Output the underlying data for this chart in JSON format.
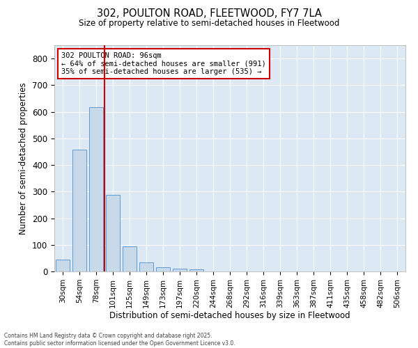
{
  "title1": "302, POULTON ROAD, FLEETWOOD, FY7 7LA",
  "title2": "Size of property relative to semi-detached houses in Fleetwood",
  "xlabel": "Distribution of semi-detached houses by size in Fleetwood",
  "ylabel": "Number of semi-detached properties",
  "bar_categories": [
    "30sqm",
    "54sqm",
    "78sqm",
    "101sqm",
    "125sqm",
    "149sqm",
    "173sqm",
    "197sqm",
    "220sqm",
    "244sqm",
    "268sqm",
    "292sqm",
    "316sqm",
    "339sqm",
    "363sqm",
    "387sqm",
    "411sqm",
    "435sqm",
    "458sqm",
    "482sqm",
    "506sqm"
  ],
  "bar_values": [
    45,
    457,
    617,
    289,
    94,
    35,
    15,
    10,
    8,
    0,
    0,
    0,
    0,
    0,
    0,
    0,
    0,
    0,
    0,
    0,
    0
  ],
  "bar_color": "#c8d9ea",
  "bar_edge_color": "#5b9bd5",
  "vline_color": "#cc0000",
  "annotation_text": "302 POULTON ROAD: 96sqm\n← 64% of semi-detached houses are smaller (991)\n35% of semi-detached houses are larger (535) →",
  "annotation_box_color": "white",
  "annotation_box_edge": "#cc0000",
  "ylim": [
    0,
    850
  ],
  "yticks": [
    0,
    100,
    200,
    300,
    400,
    500,
    600,
    700,
    800
  ],
  "background_color": "#dce9f5",
  "grid_color": "white",
  "footer_line1": "Contains HM Land Registry data © Crown copyright and database right 2025.",
  "footer_line2": "Contains public sector information licensed under the Open Government Licence v3.0."
}
